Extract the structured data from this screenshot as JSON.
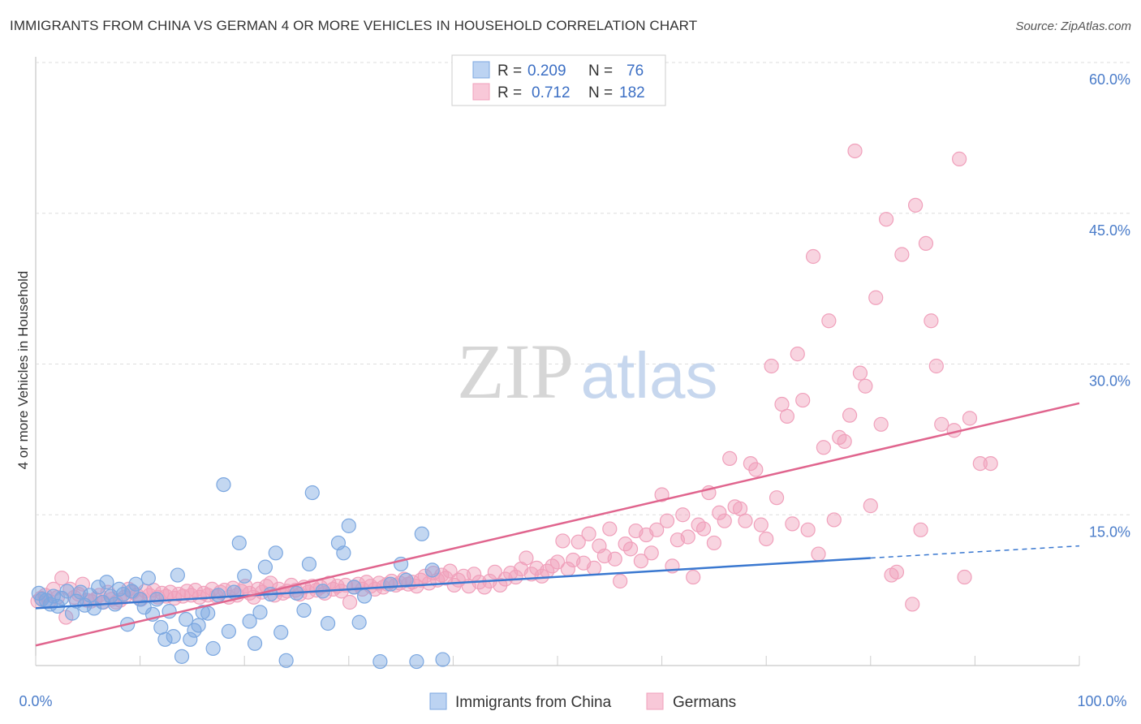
{
  "title": "IMMIGRANTS FROM CHINA VS GERMAN 4 OR MORE VEHICLES IN HOUSEHOLD CORRELATION CHART",
  "source": "Source: ZipAtlas.com",
  "watermark": {
    "zip": "ZIP",
    "atlas": "atlas"
  },
  "colors": {
    "china": "#7ba7e0",
    "china_line": "#3a78d0",
    "german": "#f0a0bb",
    "german_line": "#e0658e",
    "accent_text": "#3c6fc4"
  },
  "legend": {
    "rows": [
      {
        "r_label": "R =",
        "r_value": "0.209",
        "n_label": "N =",
        "n_value": "76"
      },
      {
        "r_label": "R =",
        "r_value": "0.712",
        "n_label": "N =",
        "n_value": "182"
      }
    ]
  },
  "chart_data": {
    "type": "scatter",
    "title": "IMMIGRANTS FROM CHINA VS GERMAN 4 OR MORE VEHICLES IN HOUSEHOLD CORRELATION CHART",
    "xlabel": "",
    "ylabel": "4 or more Vehicles in Household",
    "xlim": [
      0,
      100
    ],
    "ylim": [
      0,
      60
    ],
    "x_tick_labels": [
      "0.0%",
      "100.0%"
    ],
    "y_ticks": [
      15,
      30,
      45,
      60
    ],
    "y_tick_labels": [
      "15.0%",
      "30.0%",
      "45.0%",
      "60.0%"
    ],
    "grid": true,
    "legend_placement": "top-center",
    "series": [
      {
        "name": "Immigrants from China",
        "points": [
          [
            0.3,
            7.2
          ],
          [
            0.6,
            6.6
          ],
          [
            1.0,
            6.5
          ],
          [
            1.4,
            6.1
          ],
          [
            1.7,
            6.9
          ],
          [
            2.1,
            5.9
          ],
          [
            2.5,
            6.7
          ],
          [
            3.0,
            7.4
          ],
          [
            3.5,
            5.2
          ],
          [
            3.9,
            6.4
          ],
          [
            4.3,
            7.3
          ],
          [
            4.7,
            6.0
          ],
          [
            5.2,
            7.0
          ],
          [
            5.6,
            5.7
          ],
          [
            6.0,
            7.8
          ],
          [
            6.4,
            6.3
          ],
          [
            6.8,
            8.3
          ],
          [
            7.2,
            6.9
          ],
          [
            7.6,
            6.1
          ],
          [
            8.0,
            7.6
          ],
          [
            8.4,
            7.1
          ],
          [
            8.8,
            4.1
          ],
          [
            9.2,
            7.4
          ],
          [
            9.6,
            8.1
          ],
          [
            10.0,
            6.6
          ],
          [
            10.4,
            5.8
          ],
          [
            10.8,
            8.7
          ],
          [
            11.2,
            5.1
          ],
          [
            11.6,
            6.6
          ],
          [
            12.0,
            3.8
          ],
          [
            12.4,
            2.6
          ],
          [
            12.8,
            5.4
          ],
          [
            13.2,
            2.9
          ],
          [
            13.6,
            9.0
          ],
          [
            14.0,
            0.9
          ],
          [
            14.4,
            4.6
          ],
          [
            14.8,
            2.6
          ],
          [
            15.2,
            3.5
          ],
          [
            15.6,
            4.0
          ],
          [
            16.0,
            5.3
          ],
          [
            16.5,
            5.2
          ],
          [
            17.0,
            1.7
          ],
          [
            17.5,
            7.0
          ],
          [
            18.0,
            18.0
          ],
          [
            18.5,
            3.4
          ],
          [
            19.0,
            7.3
          ],
          [
            19.5,
            12.2
          ],
          [
            20.0,
            8.9
          ],
          [
            20.5,
            4.4
          ],
          [
            21.0,
            2.2
          ],
          [
            21.5,
            5.3
          ],
          [
            22.0,
            9.8
          ],
          [
            22.5,
            7.1
          ],
          [
            23.0,
            11.2
          ],
          [
            23.5,
            3.3
          ],
          [
            24.0,
            0.5
          ],
          [
            25.0,
            7.2
          ],
          [
            25.7,
            5.5
          ],
          [
            26.2,
            10.1
          ],
          [
            26.5,
            17.2
          ],
          [
            27.5,
            7.4
          ],
          [
            28.0,
            4.2
          ],
          [
            29.0,
            12.2
          ],
          [
            29.5,
            11.2
          ],
          [
            30.0,
            13.9
          ],
          [
            30.5,
            7.8
          ],
          [
            31.0,
            4.3
          ],
          [
            31.5,
            6.9
          ],
          [
            33.0,
            0.4
          ],
          [
            34.0,
            8.1
          ],
          [
            35.0,
            10.1
          ],
          [
            35.5,
            8.5
          ],
          [
            36.5,
            0.4
          ],
          [
            37.0,
            13.1
          ],
          [
            38.0,
            9.5
          ],
          [
            39.0,
            0.6
          ]
        ]
      },
      {
        "name": "Germans",
        "points": [
          [
            0.2,
            6.4
          ],
          [
            0.5,
            6.7
          ],
          [
            0.9,
            7.0
          ],
          [
            1.3,
            6.4
          ],
          [
            1.7,
            7.6
          ],
          [
            2.1,
            6.8
          ],
          [
            2.5,
            8.7
          ],
          [
            2.9,
            4.8
          ],
          [
            3.3,
            7.6
          ],
          [
            3.7,
            6.8
          ],
          [
            4.1,
            7.1
          ],
          [
            4.5,
            8.1
          ],
          [
            4.9,
            6.5
          ],
          [
            5.3,
            6.4
          ],
          [
            5.7,
            6.6
          ],
          [
            6.1,
            7.0
          ],
          [
            6.5,
            6.3
          ],
          [
            6.9,
            7.3
          ],
          [
            7.3,
            6.6
          ],
          [
            7.7,
            6.3
          ],
          [
            8.1,
            6.5
          ],
          [
            8.5,
            6.8
          ],
          [
            8.9,
            7.6
          ],
          [
            9.3,
            7.3
          ],
          [
            9.7,
            7.0
          ],
          [
            10.1,
            6.6
          ],
          [
            10.5,
            7.4
          ],
          [
            10.9,
            7.0
          ],
          [
            11.3,
            7.5
          ],
          [
            11.7,
            6.8
          ],
          [
            12.1,
            7.2
          ],
          [
            12.5,
            6.9
          ],
          [
            12.9,
            7.3
          ],
          [
            13.3,
            6.7
          ],
          [
            13.7,
            7.1
          ],
          [
            14.1,
            6.9
          ],
          [
            14.5,
            7.4
          ],
          [
            14.9,
            7.0
          ],
          [
            15.3,
            7.5
          ],
          [
            15.7,
            6.8
          ],
          [
            16.1,
            7.2
          ],
          [
            16.5,
            7.0
          ],
          [
            16.9,
            7.6
          ],
          [
            17.3,
            6.9
          ],
          [
            17.7,
            7.3
          ],
          [
            18.1,
            7.5
          ],
          [
            18.5,
            6.8
          ],
          [
            18.9,
            7.7
          ],
          [
            19.3,
            7.0
          ],
          [
            19.7,
            7.4
          ],
          [
            20.1,
            7.9
          ],
          [
            20.5,
            7.2
          ],
          [
            20.9,
            6.8
          ],
          [
            21.3,
            7.6
          ],
          [
            21.7,
            7.3
          ],
          [
            22.1,
            7.9
          ],
          [
            22.5,
            8.2
          ],
          [
            22.9,
            7.0
          ],
          [
            23.3,
            7.6
          ],
          [
            23.7,
            7.2
          ],
          [
            24.1,
            7.4
          ],
          [
            24.5,
            8.0
          ],
          [
            24.9,
            7.5
          ],
          [
            25.3,
            7.1
          ],
          [
            25.7,
            7.8
          ],
          [
            26.1,
            7.3
          ],
          [
            26.5,
            7.9
          ],
          [
            26.9,
            7.5
          ],
          [
            27.3,
            7.8
          ],
          [
            27.7,
            7.2
          ],
          [
            28.1,
            8.2
          ],
          [
            28.5,
            7.6
          ],
          [
            28.9,
            7.9
          ],
          [
            29.3,
            7.4
          ],
          [
            29.7,
            8.0
          ],
          [
            30.1,
            6.3
          ],
          [
            30.5,
            7.8
          ],
          [
            30.9,
            8.1
          ],
          [
            31.3,
            7.6
          ],
          [
            31.7,
            8.3
          ],
          [
            32.1,
            7.9
          ],
          [
            32.5,
            7.6
          ],
          [
            32.9,
            8.2
          ],
          [
            33.3,
            7.8
          ],
          [
            33.7,
            8.1
          ],
          [
            34.1,
            8.4
          ],
          [
            34.5,
            8.0
          ],
          [
            34.9,
            8.2
          ],
          [
            35.3,
            8.6
          ],
          [
            35.7,
            8.1
          ],
          [
            36.1,
            8.3
          ],
          [
            36.5,
            7.9
          ],
          [
            36.9,
            8.5
          ],
          [
            37.3,
            8.9
          ],
          [
            37.7,
            8.2
          ],
          [
            38.1,
            9.2
          ],
          [
            38.5,
            8.5
          ],
          [
            38.9,
            9.0
          ],
          [
            39.3,
            8.7
          ],
          [
            39.7,
            9.4
          ],
          [
            40.1,
            8.0
          ],
          [
            40.5,
            8.5
          ],
          [
            41.0,
            8.9
          ],
          [
            41.5,
            7.9
          ],
          [
            42.0,
            9.1
          ],
          [
            42.5,
            8.3
          ],
          [
            43.0,
            7.8
          ],
          [
            43.5,
            8.4
          ],
          [
            44.0,
            9.3
          ],
          [
            44.5,
            8.0
          ],
          [
            45.0,
            8.6
          ],
          [
            45.5,
            9.2
          ],
          [
            46.0,
            8.8
          ],
          [
            46.5,
            9.6
          ],
          [
            47.0,
            10.7
          ],
          [
            47.5,
            9.1
          ],
          [
            48.0,
            9.7
          ],
          [
            48.5,
            8.9
          ],
          [
            49.0,
            9.4
          ],
          [
            49.5,
            9.9
          ],
          [
            50.0,
            10.3
          ],
          [
            50.5,
            12.4
          ],
          [
            51.0,
            9.6
          ],
          [
            51.5,
            10.5
          ],
          [
            52.0,
            12.3
          ],
          [
            52.5,
            10.2
          ],
          [
            53.0,
            13.1
          ],
          [
            53.5,
            9.7
          ],
          [
            54.0,
            11.9
          ],
          [
            54.5,
            10.9
          ],
          [
            55.0,
            13.6
          ],
          [
            55.5,
            10.6
          ],
          [
            56.0,
            8.4
          ],
          [
            56.5,
            12.1
          ],
          [
            57.0,
            11.6
          ],
          [
            57.5,
            13.4
          ],
          [
            58.0,
            10.4
          ],
          [
            58.5,
            13.0
          ],
          [
            59.0,
            11.2
          ],
          [
            59.5,
            13.5
          ],
          [
            60.0,
            17.0
          ],
          [
            60.5,
            14.4
          ],
          [
            61.0,
            9.9
          ],
          [
            61.5,
            12.5
          ],
          [
            62.0,
            15.0
          ],
          [
            62.5,
            12.8
          ],
          [
            63.0,
            8.8
          ],
          [
            63.5,
            14.0
          ],
          [
            64.0,
            13.6
          ],
          [
            64.5,
            17.2
          ],
          [
            65.0,
            12.2
          ],
          [
            65.5,
            15.2
          ],
          [
            66.0,
            14.4
          ],
          [
            66.5,
            20.6
          ],
          [
            67.0,
            15.8
          ],
          [
            67.5,
            15.6
          ],
          [
            68.0,
            14.4
          ],
          [
            68.5,
            20.1
          ],
          [
            69.0,
            19.5
          ],
          [
            69.5,
            14.0
          ],
          [
            70.0,
            12.6
          ],
          [
            70.5,
            29.8
          ],
          [
            71.0,
            16.7
          ],
          [
            71.5,
            26.0
          ],
          [
            72.0,
            24.8
          ],
          [
            72.5,
            14.1
          ],
          [
            73.0,
            31.0
          ],
          [
            73.5,
            26.4
          ],
          [
            74.0,
            13.5
          ],
          [
            74.5,
            40.7
          ],
          [
            75.0,
            11.1
          ],
          [
            75.5,
            21.7
          ],
          [
            76.0,
            34.3
          ],
          [
            76.5,
            14.5
          ],
          [
            77.0,
            22.7
          ],
          [
            77.5,
            22.3
          ],
          [
            78.0,
            24.9
          ],
          [
            78.5,
            51.2
          ],
          [
            79.0,
            29.1
          ],
          [
            79.5,
            27.8
          ],
          [
            80.0,
            15.9
          ],
          [
            80.5,
            36.6
          ],
          [
            81.0,
            24.0
          ],
          [
            81.5,
            44.4
          ],
          [
            82.0,
            9.0
          ],
          [
            82.5,
            9.3
          ],
          [
            83.0,
            40.9
          ],
          [
            84.0,
            6.1
          ],
          [
            84.3,
            45.8
          ],
          [
            84.8,
            13.5
          ],
          [
            85.3,
            42.0
          ],
          [
            85.8,
            34.3
          ],
          [
            86.3,
            29.8
          ],
          [
            86.8,
            24.0
          ],
          [
            88.0,
            23.4
          ],
          [
            88.5,
            50.4
          ],
          [
            89.0,
            8.8
          ],
          [
            89.5,
            24.6
          ],
          [
            90.5,
            20.1
          ],
          [
            91.5,
            20.1
          ]
        ]
      }
    ],
    "trend_lines": [
      {
        "name": "Immigrants from China",
        "x": [
          0,
          80
        ],
        "y": [
          5.7,
          10.7
        ],
        "dashed_extension_to_x": 100,
        "dashed_extension_y": 11.9
      },
      {
        "name": "Germans",
        "x": [
          0,
          100
        ],
        "y": [
          2.0,
          26.1
        ]
      }
    ]
  }
}
